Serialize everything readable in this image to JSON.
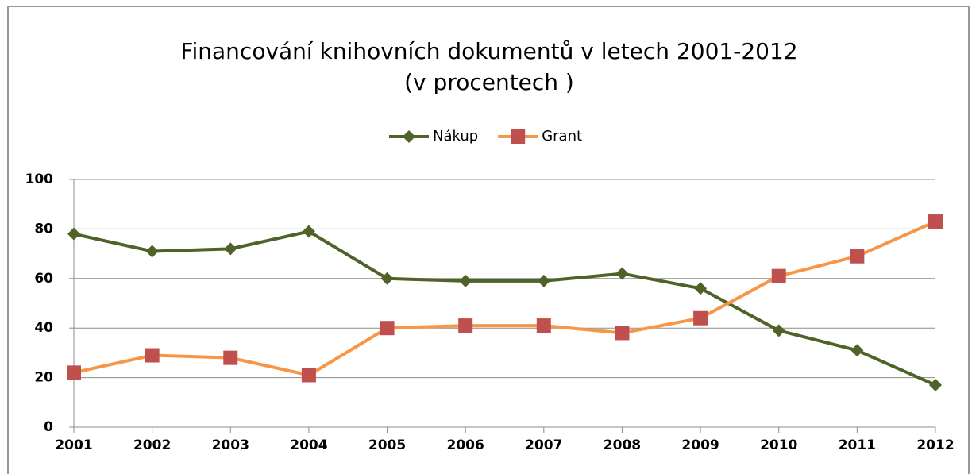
{
  "chart_data": {
    "type": "line",
    "title": [
      "Financování knihovních dokumentů  v letech 2001-2012",
      "(v procentech )"
    ],
    "x": [
      2001,
      2002,
      2003,
      2004,
      2005,
      2006,
      2007,
      2008,
      2009,
      2010,
      2011,
      2012
    ],
    "series": [
      {
        "name": "Nákup",
        "color": "#4f6228",
        "marker_color": "#4f6228",
        "marker": "diamond",
        "values": [
          78,
          71,
          72,
          79,
          60,
          59,
          59,
          62,
          56,
          39,
          31,
          17
        ]
      },
      {
        "name": "Grant",
        "color": "#f79646",
        "marker_color": "#c0504d",
        "marker": "square",
        "values": [
          22,
          29,
          28,
          21,
          40,
          41,
          41,
          38,
          44,
          61,
          69,
          83
        ]
      }
    ],
    "xlim": [
      2001,
      2012
    ],
    "xticks": [
      2001,
      2002,
      2003,
      2004,
      2005,
      2006,
      2007,
      2008,
      2009,
      2010,
      2011,
      2012
    ],
    "ylim": [
      0,
      100
    ],
    "yticks": [
      0,
      20,
      40,
      60,
      80,
      100
    ],
    "grid": true,
    "legend": "top"
  }
}
